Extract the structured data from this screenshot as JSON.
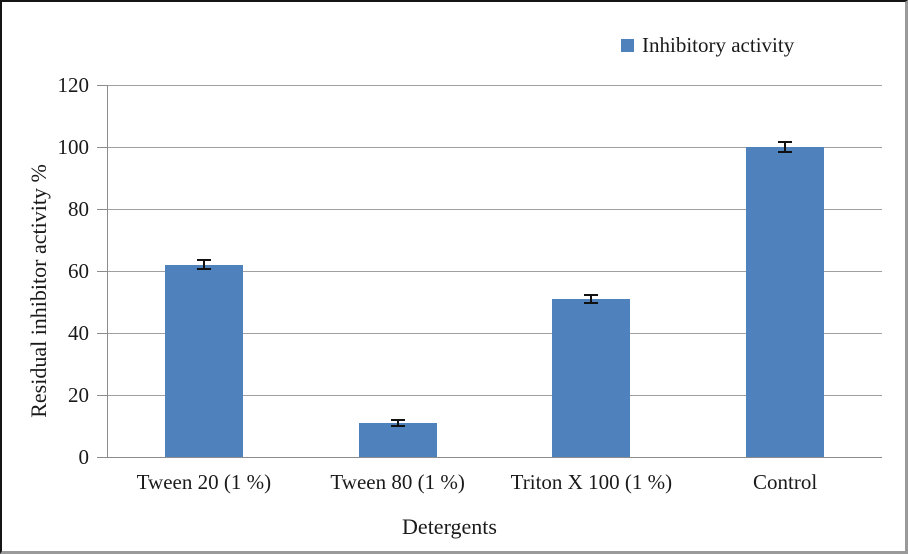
{
  "legend": {
    "label": "Inhibitory activity",
    "swatch_color": "#4F81BD"
  },
  "chart_data": {
    "type": "bar",
    "title": "",
    "categories": [
      "Tween 20 (1 %)",
      "Tween 80 (1 %)",
      "Triton X 100 (1 %)",
      "Control"
    ],
    "series": [
      {
        "name": "Inhibitory activity",
        "values": [
          62,
          11,
          51,
          100
        ],
        "error_bars": [
          1.5,
          1.0,
          1.3,
          1.5
        ]
      }
    ],
    "xlabel": "Detergents",
    "ylabel": "Residual inhibitor activity %",
    "ylim": [
      0,
      120
    ],
    "yticks": [
      0,
      20,
      40,
      60,
      80,
      100,
      120
    ],
    "grid": true,
    "legend_position": "top-right",
    "colors": {
      "bar": "#4F81BD",
      "gridline": "#A0A0A0",
      "axis": "#8C8C8C",
      "error_bar": "#111111",
      "text": "#1a1a1a",
      "background": "#ffffff"
    }
  }
}
